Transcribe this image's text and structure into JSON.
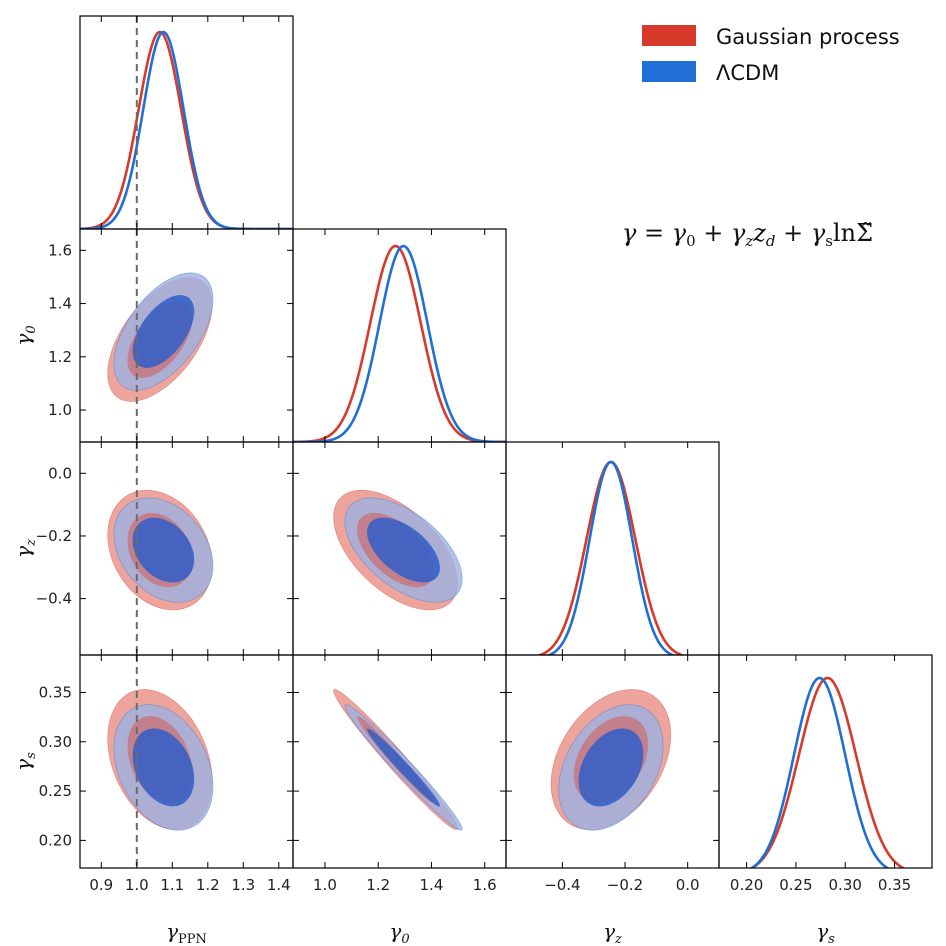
{
  "chart_data": {
    "type": "triangle-corner",
    "parameters": [
      {
        "id": "gamma_ppn",
        "label_base": "γ",
        "label_sub": "PPN",
        "range": [
          0.84,
          1.44
        ],
        "ticks": [
          "0.9",
          "1.0",
          "1.1",
          "1.2",
          "1.3",
          "1.4"
        ],
        "tick_values": [
          0.9,
          1.0,
          1.1,
          1.2,
          1.3,
          1.4
        ]
      },
      {
        "id": "gamma_0",
        "label_base": "γ",
        "label_sub": "0",
        "range": [
          0.88,
          1.68
        ],
        "ticks": [
          "1.0",
          "1.2",
          "1.4",
          "1.6"
        ],
        "tick_values": [
          1.0,
          1.2,
          1.4,
          1.6
        ]
      },
      {
        "id": "gamma_z",
        "label_base": "γ",
        "label_sub": "z",
        "range": [
          -0.58,
          0.1
        ],
        "ticks": [
          "−0.4",
          "−0.2",
          "0.0"
        ],
        "tick_values": [
          -0.4,
          -0.2,
          0.0
        ]
      },
      {
        "id": "gamma_s",
        "label_base": "γ",
        "label_sub": "s",
        "range": [
          0.172,
          0.388
        ],
        "ticks": [
          "0.20",
          "0.25",
          "0.30",
          "0.35"
        ],
        "tick_values": [
          0.2,
          0.25,
          0.3,
          0.35
        ]
      }
    ],
    "series": [
      {
        "name": "Gaussian process",
        "color": "#d73a2a",
        "fill_outer": "#ea9a92",
        "fill_inner": "#d45a50",
        "means": [
          1.065,
          1.265,
          -0.245,
          0.282
        ],
        "sigmas": [
          0.06,
          0.095,
          0.078,
          0.029
        ],
        "correlations": {
          "0-1": 0.55,
          "0-2": -0.25,
          "0-3": -0.3,
          "1-2": -0.55,
          "1-3": -0.98,
          "2-3": 0.35
        }
      },
      {
        "name": "ΛCDM",
        "color": "#1f6fd6",
        "fill_outer": "#9eb0e2",
        "fill_inner": "#2f5ec8",
        "means": [
          1.075,
          1.295,
          -0.245,
          0.274
        ],
        "sigmas": [
          0.057,
          0.09,
          0.068,
          0.026
        ],
        "correlations": {
          "0-1": 0.55,
          "0-2": -0.3,
          "0-3": -0.3,
          "1-2": -0.55,
          "1-3": -0.98,
          "2-3": 0.35
        }
      }
    ],
    "reference_line": {
      "parameter": "gamma_ppn",
      "value": 1.0,
      "style": "dashed",
      "color": "#6b6b6b"
    },
    "legend": {
      "placement": "top-right"
    },
    "annotation": {
      "lhs": "γ",
      "eq": " = ",
      "t1_base": "γ",
      "t1_sub": "0",
      "plus1": " + ",
      "t2_base": "γ",
      "t2_sub": "z",
      "t2_var_base": "z",
      "t2_var_sub": "d",
      "plus2": " + ",
      "t3_base": "γ",
      "t3_sub": "s",
      "t3_fn": "ln",
      "t3_var": "Σ̃"
    }
  }
}
